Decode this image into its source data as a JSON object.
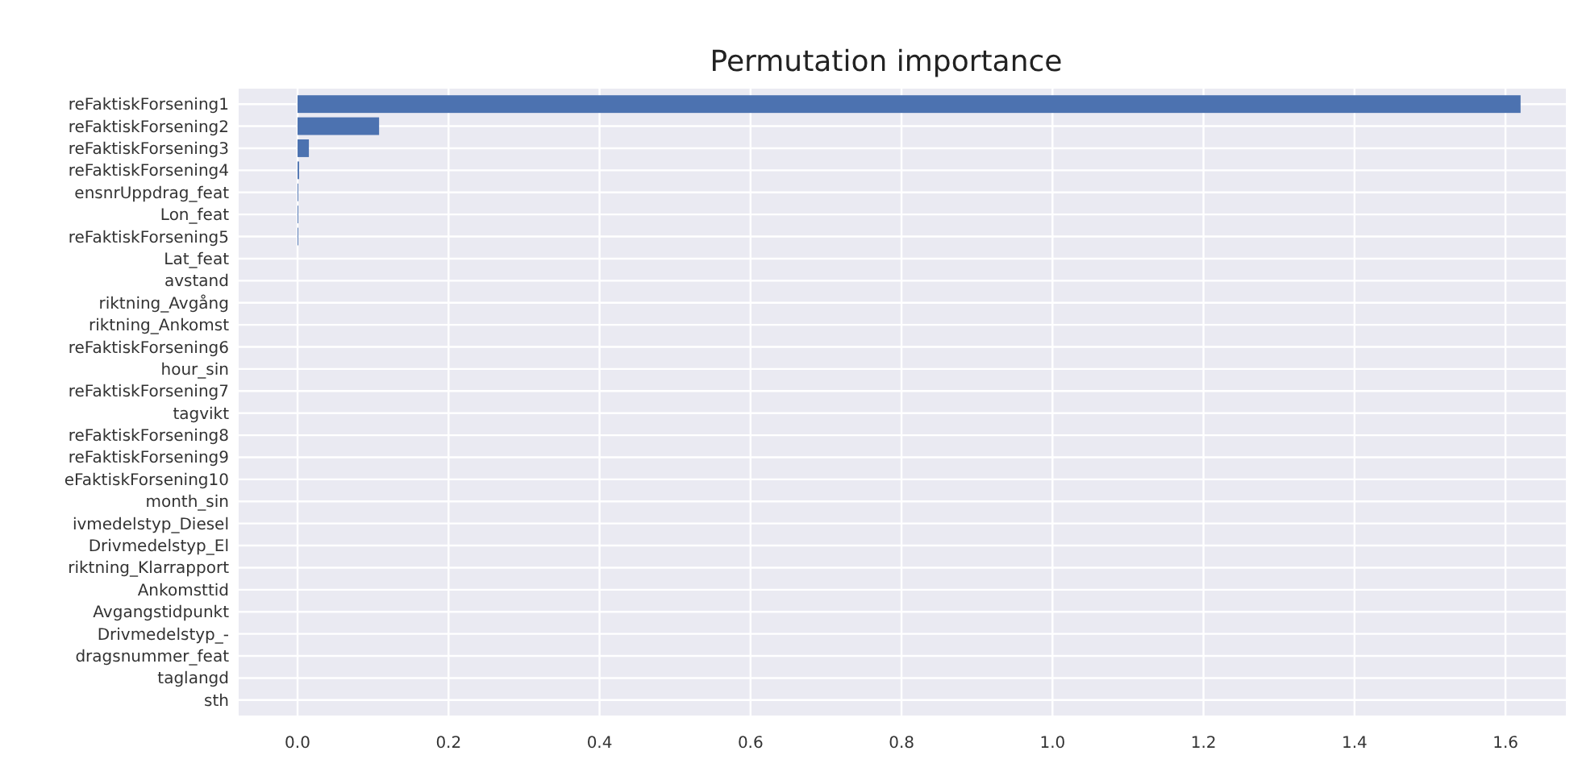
{
  "chart_data": {
    "type": "bar",
    "orientation": "horizontal",
    "title": "Permutation importance",
    "categories": [
      "reFaktiskForsening1",
      "reFaktiskForsening2",
      "reFaktiskForsening3",
      "reFaktiskForsening4",
      "ensnrUppdrag_feat",
      "Lon_feat",
      "reFaktiskForsening5",
      "Lat_feat",
      "avstand",
      "riktning_Avgång",
      "riktning_Ankomst",
      "reFaktiskForsening6",
      "hour_sin",
      "reFaktiskForsening7",
      "tagvikt",
      "reFaktiskForsening8",
      "reFaktiskForsening9",
      "eFaktiskForsening10",
      "month_sin",
      "ivmedelstyp_Diesel",
      "Drivmedelstyp_El",
      "riktning_Klarrapport",
      "Ankomsttid",
      "Avgangstidpunkt",
      "Drivmedelstyp_-",
      "dragsnummer_feat",
      "taglangd",
      "sth"
    ],
    "values": [
      1.62,
      0.108,
      0.015,
      0.002,
      0.001,
      0.001,
      0.001,
      0,
      0,
      0,
      0,
      0,
      0,
      0,
      0,
      0,
      0,
      0,
      0,
      0,
      0,
      0,
      0,
      0,
      0,
      0,
      0,
      0
    ],
    "color": "#4c72b0",
    "xlim": [
      -0.078,
      1.68
    ],
    "xticks": [
      {
        "value": 0,
        "label": "0.0"
      },
      {
        "value": 0.2,
        "label": "0.2"
      },
      {
        "value": 0.4,
        "label": "0.4"
      },
      {
        "value": 0.6,
        "label": "0.6"
      },
      {
        "value": 0.8,
        "label": "0.8"
      },
      {
        "value": 1,
        "label": "1.0"
      },
      {
        "value": 1.2,
        "label": "1.2"
      },
      {
        "value": 1.4,
        "label": "1.4"
      },
      {
        "value": 1.6,
        "label": "1.6"
      }
    ],
    "grid": true
  }
}
